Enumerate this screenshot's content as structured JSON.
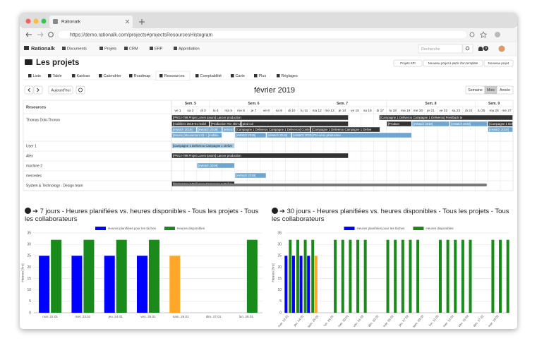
{
  "browser": {
    "tab_title": "Rationalk",
    "url": "https://demo.rationalk.com/projects#projectsResourcesHistogram"
  },
  "navbar": {
    "brand": "Rationalk",
    "menus": [
      "Documents",
      "Projets",
      "CRM",
      "ERP",
      "Approbation"
    ],
    "search_placeholder": "Recherche",
    "notification_count": 0
  },
  "page": {
    "title": "Les projets",
    "actions": [
      "Projets KPI",
      "Nouveau projet à partir d'un template",
      "Nouveau projet"
    ],
    "tabs": [
      "Liste",
      "Table",
      "Kanban",
      "Calendrier",
      "Roadmap",
      "Ressources",
      "Comptabilité",
      "Carte",
      "Plus",
      "Réglages"
    ]
  },
  "scheduler": {
    "today_button": "Aujourd'hui",
    "month_title": "février 2019",
    "views": [
      "Semaine",
      "Mois",
      "Année"
    ],
    "resources_header": "Resources",
    "weeks": [
      "Sem. 5",
      "Sem. 6",
      "Sem. 7",
      "Sem. 8",
      "Sem. 9"
    ],
    "days": [
      "ve 1",
      "sa 2",
      "di 3",
      "lu 4",
      "ma 5",
      "me 6",
      "je 7",
      "ve 8",
      "sa 9",
      "di 10",
      "lu 11",
      "ma 12",
      "me 13",
      "je 14",
      "ve 15",
      "sa 16",
      "di 17",
      "lu 18",
      "ma 19",
      "me 20",
      "je 21",
      "ve 22",
      "sa 23",
      "di 24",
      "lu 25",
      "ma 26",
      "me 27"
    ],
    "resources": [
      "Thomas Doki-Thonon",
      "User 1",
      "Alex",
      "machine 2",
      "mercedes",
      "System & Technology - Design team"
    ],
    "events": [
      {
        "label": "[PROJ-789 Projet Lorem Ipsum] Lancer production"
      },
      {
        "label": "[Campagne 1 Deliveroo Campagne 1 Deliveroo] Feedback te"
      },
      {
        "label": "[mobiliers 2019-01 mobil"
      },
      {
        "label": "[Production Tee shirt 24"
      },
      {
        "label": "prod col"
      },
      {
        "label": "[Product"
      },
      {
        "label": "[eWatch 2019]"
      },
      {
        "label": "[eWatch 2019]"
      },
      {
        "label": "[Campagne 1 Deliveroo"
      },
      {
        "label": "[eWatch 2019]"
      },
      {
        "label": "[eWatch 2019]"
      },
      {
        "label": "[eWatch 2019]"
      },
      {
        "label": "[Campagne 1 Deliveroo Campagne 1 Deliveroo] Conte"
      },
      {
        "label": "[Campagne 1 Deliveroo Campagne 1 Delive"
      },
      {
        "label": "[eWatch 2019]"
      },
      {
        "label": "[Mouse [Mouvement 51 + [mobilie"
      },
      {
        "label": "[eWatch 2019]"
      },
      {
        "label": "[eWatch 2019]"
      },
      {
        "label": "[eWatch 2019] Pré-série production"
      },
      {
        "label": "[Campagne 1 Deliveroo Campagne 1 Delive"
      },
      {
        "label": "[PROJ-789 Projet Lorem Ipsum] Lancer production"
      },
      {
        "label": "[eWatch 2019]"
      },
      {
        "label": "[eWatch 2019]"
      },
      {
        "label": "[Campagne 1 Deliveroo Campagne 1 Delive"
      }
    ]
  },
  "charts": [
    {
      "type": "bar",
      "title": "➔ 7 jours - Heures planifiées vs. heures disponibles - Tous les projets - Tous les collaborateurs",
      "y_label": "Heures [hrs]",
      "categories": [
        "mar. 22.01",
        "mer. 23.01",
        "jeu. 24.01",
        "ven. 25.01",
        "sam. 26.01",
        "dim. 27.01",
        "lun. 28.01"
      ],
      "ylim": [
        0,
        35
      ],
      "yticks": [
        0,
        5,
        10,
        15,
        20,
        25,
        30,
        35
      ],
      "grid": true,
      "series": [
        {
          "name": "Heures planifiées pour les tâches",
          "color": "#0000ff",
          "values": [
            25,
            25,
            25,
            25,
            25,
            null,
            null
          ],
          "colors": [
            "#0000ff",
            "#0000ff",
            "#0000ff",
            "#0000ff",
            "#ffa726",
            null,
            null
          ]
        },
        {
          "name": "Heures disponibles",
          "color": "#1a8a1a",
          "values": [
            32,
            32,
            32,
            32,
            null,
            null,
            32
          ]
        }
      ]
    },
    {
      "type": "bar",
      "title": "➔ 30 jours - Heures planifiées vs. heures disponibles - Tous les projets - Tous les collaborateurs",
      "y_label": "Heures [hrs]",
      "categories": [
        "mar. 22.01",
        null,
        "jeu. 24.01",
        null,
        "sam. 26.01",
        null,
        "lun. 28.01",
        null,
        "mer. 30.01",
        null,
        "ven. 01.02",
        null,
        "dim. 03.02",
        null,
        "mar. 05.02",
        null,
        "jeu. 07.02",
        null,
        "sam. 09.02",
        null,
        "lun. 11.02",
        null,
        "mer. 13.02",
        null,
        "ven. 15.02",
        null,
        "dim. 17.02",
        null,
        "mar. 19.02",
        null
      ],
      "ylim": [
        0,
        35
      ],
      "yticks": [
        0,
        5,
        10,
        15,
        20,
        25,
        30,
        35
      ],
      "grid": true,
      "series": [
        {
          "name": "Heures planifiées pour les tâches",
          "color": "#0000ff",
          "values": [
            25,
            25,
            25,
            25,
            25,
            null,
            null,
            null,
            null,
            null,
            null,
            null,
            null,
            null,
            null,
            null,
            null,
            null,
            null,
            null,
            null,
            null,
            null,
            null,
            null,
            null,
            null,
            null,
            null,
            null
          ],
          "colors": [
            "#0000ff",
            "#0000ff",
            "#0000ff",
            "#0000ff",
            "#ffa726",
            null,
            null,
            null,
            null,
            null,
            null,
            null,
            null,
            null,
            null,
            null,
            null,
            null,
            null,
            null,
            null,
            null,
            null,
            null,
            null,
            null,
            null,
            null,
            null,
            null
          ]
        },
        {
          "name": "Heures disponibles",
          "color": "#1a8a1a",
          "values": [
            32,
            32,
            32,
            32,
            null,
            null,
            32,
            32,
            32,
            32,
            32,
            null,
            null,
            32,
            32,
            32,
            32,
            32,
            null,
            null,
            32,
            32,
            32,
            32,
            32,
            null,
            null,
            32,
            32,
            32
          ]
        }
      ]
    }
  ]
}
